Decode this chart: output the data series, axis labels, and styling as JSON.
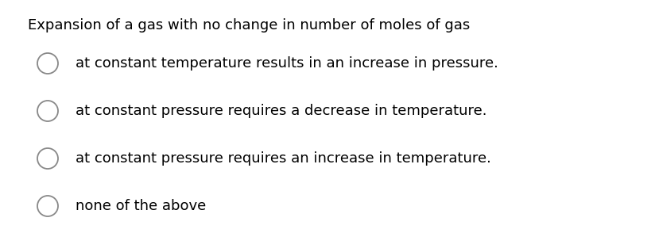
{
  "title": "Expansion of a gas with no change in number of moles of gas",
  "options": [
    "at constant temperature results in an increase in pressure.",
    "at constant pressure requires a decrease in temperature.",
    "at constant pressure requires an increase in temperature.",
    "none of the above"
  ],
  "title_fontsize": 13.0,
  "option_fontsize": 13.0,
  "background_color": "#ffffff",
  "text_color": "#000000",
  "circle_edge_color": "#888888",
  "title_fontweight": "normal",
  "font_family": "DejaVu Sans",
  "fig_width": 8.24,
  "fig_height": 3.18,
  "dpi": 100
}
